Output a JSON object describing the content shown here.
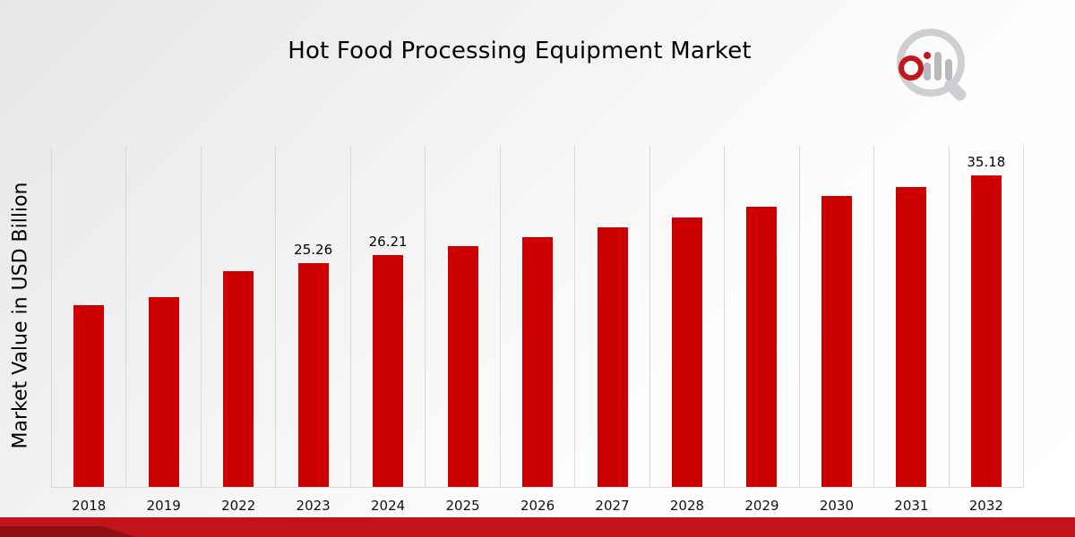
{
  "title": "Hot Food Processing Equipment Market",
  "y_axis_label": "Market Value in USD Billion",
  "colors": {
    "bar": "#cc0000",
    "gridline": "#d9d9d9",
    "strip_main": "#c2121a",
    "strip_dark": "#8e1014",
    "logo_gray": "#cfcfd3",
    "logo_red": "#c4161c"
  },
  "logo": {
    "name": "market-research-logo"
  },
  "chart_data": {
    "type": "bar",
    "title": "Hot Food Processing Equipment Market",
    "xlabel": "",
    "ylabel": "Market Value in USD Billion",
    "categories": [
      "2018",
      "2019",
      "2022",
      "2023",
      "2024",
      "2025",
      "2026",
      "2027",
      "2028",
      "2029",
      "2030",
      "2031",
      "2032"
    ],
    "values": [
      20.5,
      21.4,
      24.4,
      25.26,
      26.21,
      27.2,
      28.2,
      29.3,
      30.4,
      31.6,
      32.8,
      33.9,
      35.18
    ],
    "point_labels": [
      "",
      "",
      "",
      "25.26",
      "26.21",
      "",
      "",
      "",
      "",
      "",
      "",
      "",
      "35.18"
    ],
    "ylim": [
      0,
      38.5
    ],
    "grid": "vertical-category-boundaries",
    "legend": "none",
    "bar_color": "#cc0000"
  }
}
